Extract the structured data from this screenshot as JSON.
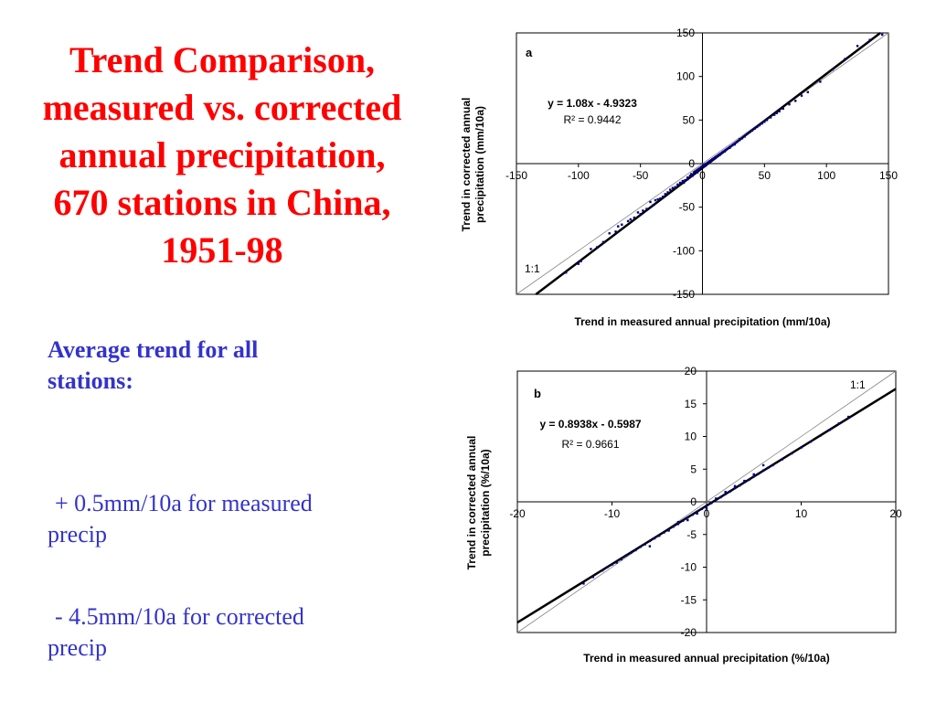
{
  "title": {
    "lines": [
      "Trend Comparison,",
      "measured vs. corrected",
      "annual precipitation,",
      "670 stations in China,",
      "1951-98"
    ]
  },
  "average": {
    "heading_lines": [
      "Average trend for all",
      "stations:"
    ],
    "measured_lines": [
      " + 0.5mm/10a for measured",
      "precip"
    ],
    "corrected_lines": [
      " - 4.5mm/10a for corrected",
      "precip"
    ]
  },
  "colors": {
    "title": "#ff0000",
    "text": "#3333cc",
    "points": "#000080"
  },
  "chart_data": [
    {
      "type": "scatter",
      "panel_label": "a",
      "xlabel": "Trend in measured annual precipitation (mm/10a)",
      "ylabel_lines": [
        "Trend in corrected annual",
        "precipitation (mm/10a)"
      ],
      "xlim": [
        -150,
        150
      ],
      "ylim": [
        -150,
        150
      ],
      "xticks": [
        -150,
        -100,
        -50,
        0,
        50,
        100,
        150
      ],
      "yticks": [
        150,
        100,
        50,
        0,
        -50,
        -100,
        -150
      ],
      "equation": "y = 1.08x - 4.9323",
      "r2_label": "R² = 0.9442",
      "one_to_one_label": "1:1",
      "fit": {
        "slope": 1.08,
        "intercept": -4.9323
      },
      "gridlines": false,
      "points": {
        "x": [
          -110,
          -100,
          -98,
          -90,
          -85,
          -80,
          -75,
          -70,
          -68,
          -65,
          -60,
          -58,
          -55,
          -52,
          -50,
          -48,
          -45,
          -42,
          -40,
          -38,
          -36,
          -34,
          -32,
          -30,
          -28,
          -26,
          -24,
          -22,
          -20,
          -18,
          -16,
          -14,
          -12,
          -10,
          -9,
          -8,
          -7,
          -6,
          -5,
          -4,
          -3,
          -2,
          -1,
          0,
          1,
          2,
          3,
          4,
          5,
          6,
          7,
          8,
          9,
          10,
          11,
          12,
          13,
          14,
          15,
          16,
          17,
          18,
          19,
          20,
          21,
          22,
          23,
          24,
          25,
          26,
          27,
          28,
          30,
          32,
          34,
          36,
          38,
          40,
          42,
          44,
          46,
          48,
          50,
          52,
          55,
          58,
          60,
          62,
          65,
          70,
          75,
          80,
          85,
          95,
          105,
          115,
          125,
          135,
          145,
          -15,
          -12,
          -8,
          -4,
          2,
          6,
          10,
          14,
          18,
          22,
          26,
          30
        ],
        "y": [
          -125,
          -115,
          -112,
          -98,
          -96,
          -90,
          -80,
          -78,
          -72,
          -70,
          -66,
          -64,
          -62,
          -56,
          -58,
          -54,
          -52,
          -44,
          -48,
          -42,
          -41,
          -40,
          -38,
          -35,
          -33,
          -30,
          -28,
          -27,
          -24,
          -22,
          -20,
          -19,
          -16,
          -14,
          -12,
          -13,
          -10,
          -9,
          -8,
          -7,
          -6,
          -5,
          -4,
          -3,
          -2,
          -1,
          0,
          1,
          2,
          3,
          4,
          5,
          6,
          7,
          8,
          9,
          10,
          11,
          12,
          13,
          14,
          15,
          16,
          17,
          18,
          19,
          20,
          21,
          22,
          23,
          24,
          25,
          27,
          29,
          31,
          34,
          36,
          38,
          40,
          42,
          44,
          46,
          48,
          50,
          53,
          56,
          58,
          60,
          63,
          68,
          72,
          78,
          82,
          94,
          108,
          120,
          135,
          142,
          148,
          -22,
          -18,
          -14,
          -10,
          -3,
          2,
          6,
          10,
          14,
          18,
          22,
          28
        ]
      }
    },
    {
      "type": "scatter",
      "panel_label": "b",
      "xlabel": "Trend in measured annual precipitation (%/10a)",
      "ylabel_lines": [
        "Trend in corrected annual",
        "precipitation (%/10a)"
      ],
      "xlim": [
        -20,
        20
      ],
      "ylim": [
        -20,
        20
      ],
      "xticks": [
        -20,
        -10,
        0,
        10,
        20
      ],
      "yticks": [
        20,
        15,
        10,
        5,
        0,
        -5,
        -10,
        -15,
        -20
      ],
      "equation": "y = 0.8938x - 0.5987",
      "r2_label": "R² = 0.9661",
      "one_to_one_label": "1:1",
      "fit": {
        "slope": 0.8938,
        "intercept": -0.5987
      },
      "gridlines": false,
      "points": {
        "x": [
          -13,
          -12,
          -11,
          -10.5,
          -10,
          -9.5,
          -9,
          -8.5,
          -8,
          -7.5,
          -7,
          -6.5,
          -6,
          -5.5,
          -5,
          -4.5,
          -4,
          -3.5,
          -3,
          -2.5,
          -2,
          -1.5,
          -1,
          -0.5,
          0,
          0.5,
          1,
          1.5,
          2,
          2.5,
          3,
          3.5,
          4,
          4.5,
          5,
          5.5,
          6,
          6.5,
          7,
          8,
          9,
          10,
          11,
          12,
          13,
          14,
          15,
          -6,
          -4,
          -2,
          0,
          2,
          4,
          6,
          -3,
          -1,
          1,
          3,
          5
        ],
        "y": [
          -12.5,
          -11.5,
          -10.5,
          -10,
          -9.6,
          -9.3,
          -8.8,
          -8.2,
          -7.8,
          -7.4,
          -6.9,
          -6.5,
          -6,
          -5.6,
          -5.2,
          -4.7,
          -4.2,
          -3.8,
          -3.4,
          -2.9,
          -2.4,
          -2,
          -1.5,
          -1.1,
          -0.6,
          -0.2,
          0.3,
          0.7,
          1.2,
          1.6,
          2.1,
          2.5,
          3,
          3.4,
          3.9,
          4.3,
          4.8,
          5.2,
          5.6,
          6.5,
          7.4,
          8.3,
          9.2,
          10.1,
          11,
          12,
          13,
          -6.8,
          -4.4,
          -2.8,
          -1,
          1.5,
          3.2,
          5.6,
          -3.1,
          -1.8,
          0.5,
          2.4,
          4.2
        ]
      }
    }
  ]
}
